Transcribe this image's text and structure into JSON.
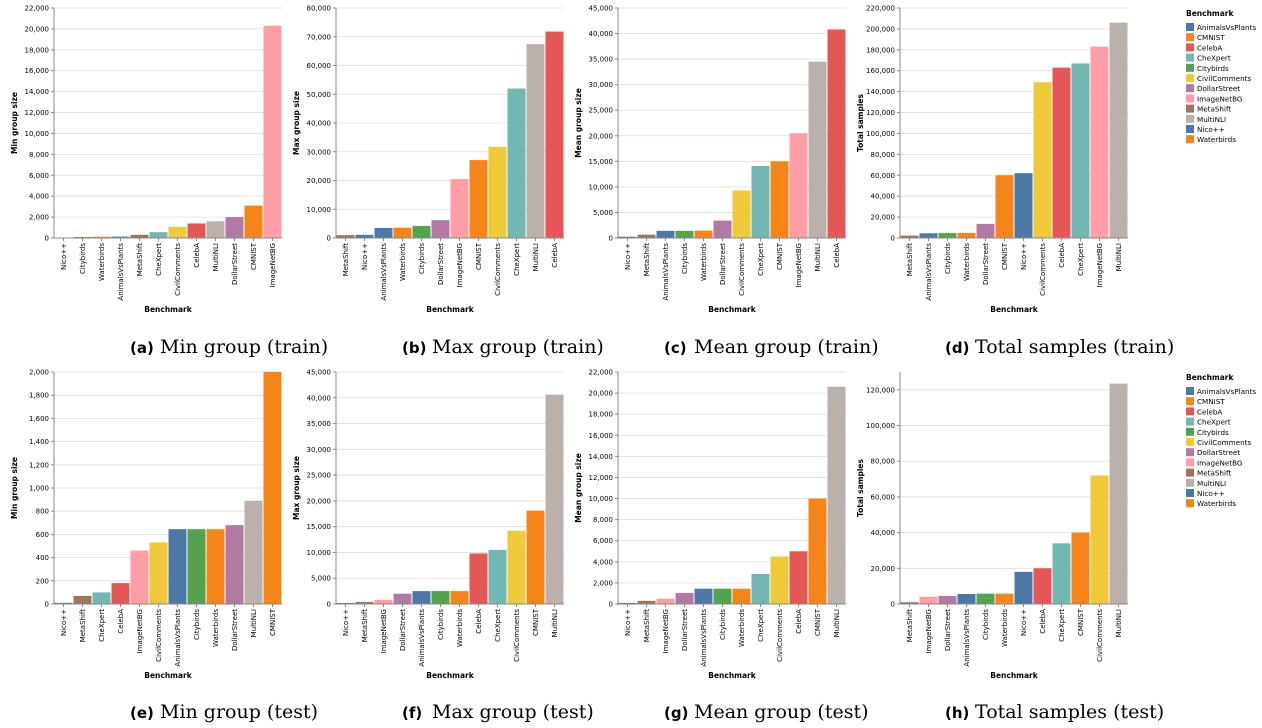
{
  "colors": {
    "AnimalsVsPlants": "#4c78a8",
    "CMNIST": "#f58518",
    "CelebA": "#e45756",
    "CheXpert": "#72b7b2",
    "Citybirds": "#54a24b",
    "CivilComments": "#eeca3b",
    "DollarStreet": "#b279a2",
    "ImageNetBG": "#ff9da6",
    "MetaShift": "#9d755d",
    "MultiNLI": "#bab0ac",
    "Nico++": "#4c78a8",
    "Waterbirds": "#f58518"
  },
  "chart_data": [
    {
      "type": "bar",
      "caption_letter": "(a)",
      "caption_text": "Min group (train)",
      "xlabel": "Benchmark",
      "ylabel": "Min group size",
      "ylim": [
        0,
        22000
      ],
      "yticks": [
        "0",
        "2,000",
        "4,000",
        "6,000",
        "8,000",
        "10,000",
        "12,000",
        "14,000",
        "16,000",
        "18,000",
        "20,000",
        "22,000"
      ],
      "categories": [
        "Nico++",
        "Citybirds",
        "Waterbirds",
        "AnimalsVsPlants",
        "MetaShift",
        "CheXpert",
        "CivilComments",
        "CelebA",
        "MultiNLI",
        "DollarStreet",
        "CMNIST",
        "ImageNetBG"
      ],
      "values": [
        30,
        100,
        120,
        130,
        300,
        560,
        1060,
        1390,
        1600,
        2000,
        3100,
        20300
      ]
    },
    {
      "type": "bar",
      "caption_letter": "(b)",
      "caption_text": "Max group (train)",
      "xlabel": "Benchmark",
      "ylabel": "Max group size",
      "ylim": [
        0,
        80000
      ],
      "yticks": [
        "0",
        "10,000",
        "20,000",
        "30,000",
        "40,000",
        "50,000",
        "60,000",
        "70,000",
        "80,000"
      ],
      "categories": [
        "MetaShift",
        "Nico++",
        "AnimalsVsPlants",
        "Waterbirds",
        "Citybirds",
        "DollarStreet",
        "ImageNetBG",
        "CMNIST",
        "CivilComments",
        "CheXpert",
        "MultiNLI",
        "CelebA"
      ],
      "values": [
        1000,
        1100,
        3500,
        3600,
        4200,
        6200,
        20500,
        27100,
        31700,
        52000,
        67400,
        71800
      ]
    },
    {
      "type": "bar",
      "caption_letter": "(c)",
      "caption_text": "Mean group (train)",
      "xlabel": "Benchmark",
      "ylabel": "Mean group size",
      "ylim": [
        0,
        45000
      ],
      "yticks": [
        "0",
        "5,000",
        "10,000",
        "15,000",
        "20,000",
        "25,000",
        "30,000",
        "35,000",
        "40,000",
        "45,000"
      ],
      "categories": [
        "Nico++",
        "MetaShift",
        "AnimalsVsPlants",
        "Citybirds",
        "Waterbirds",
        "DollarStreet",
        "CivilComments",
        "CheXpert",
        "CMNIST",
        "ImageNetBG",
        "MultiNLI",
        "CelebA"
      ],
      "values": [
        250,
        650,
        1400,
        1400,
        1450,
        3400,
        9300,
        14100,
        15000,
        20500,
        34500,
        40800
      ]
    },
    {
      "type": "bar",
      "caption_letter": "(d)",
      "caption_text": "Total samples (train)",
      "xlabel": "Benchmark",
      "ylabel": "Total samples",
      "ylim": [
        0,
        220000
      ],
      "yticks": [
        "0",
        "20,000",
        "40,000",
        "60,000",
        "80,000",
        "100,000",
        "120,000",
        "140,000",
        "160,000",
        "180,000",
        "200,000",
        "220,000"
      ],
      "categories": [
        "MetaShift",
        "AnimalsVsPlants",
        "Citybirds",
        "Waterbirds",
        "DollarStreet",
        "CMNIST",
        "Nico++",
        "CivilComments",
        "CelebA",
        "CheXpert",
        "ImageNetBG",
        "MultiNLI"
      ],
      "values": [
        2300,
        4500,
        4700,
        4800,
        13500,
        60000,
        62000,
        149000,
        163000,
        167000,
        183000,
        206000
      ],
      "legend": {
        "title": "Benchmark",
        "items": [
          "AnimalsVsPlants",
          "CMNIST",
          "CelebA",
          "CheXpert",
          "Citybirds",
          "CivilComments",
          "DollarStreet",
          "ImageNetBG",
          "MetaShift",
          "MultiNLI",
          "Nico++",
          "Waterbirds"
        ]
      }
    },
    {
      "type": "bar",
      "caption_letter": "(e)",
      "caption_text": "Min group (test)",
      "xlabel": "Benchmark",
      "ylabel": "Min group size",
      "ylim": [
        0,
        2000
      ],
      "yticks": [
        "0",
        "200",
        "400",
        "600",
        "800",
        "1,000",
        "1,200",
        "1,400",
        "1,600",
        "1,800",
        "2,000"
      ],
      "categories": [
        "Nico++",
        "MetaShift",
        "CheXpert",
        "CelebA",
        "ImageNetBG",
        "CivilComments",
        "AnimalsVsPlants",
        "Citybirds",
        "Waterbirds",
        "DollarStreet",
        "MultiNLI",
        "CMNIST"
      ],
      "values": [
        10,
        70,
        100,
        180,
        460,
        530,
        645,
        645,
        645,
        680,
        890,
        2000
      ]
    },
    {
      "type": "bar",
      "caption_letter": "(f)",
      "caption_text": "Max group (test)",
      "xlabel": "Benchmark",
      "ylabel": "Max group size",
      "ylim": [
        0,
        45000
      ],
      "yticks": [
        "0",
        "5,000",
        "10,000",
        "15,000",
        "20,000",
        "25,000",
        "30,000",
        "35,000",
        "40,000",
        "45,000"
      ],
      "categories": [
        "Nico++",
        "MetaShift",
        "ImageNetBG",
        "DollarStreet",
        "AnimalsVsPlants",
        "Citybirds",
        "Waterbirds",
        "CelebA",
        "CheXpert",
        "CivilComments",
        "CMNIST",
        "MultiNLI"
      ],
      "values": [
        200,
        400,
        800,
        2000,
        2500,
        2500,
        2500,
        9800,
        10500,
        14200,
        18100,
        40600
      ]
    },
    {
      "type": "bar",
      "caption_letter": "(g)",
      "caption_text": "Mean group (test)",
      "xlabel": "Benchmark",
      "ylabel": "Mean group size",
      "ylim": [
        0,
        22000
      ],
      "yticks": [
        "0",
        "2,000",
        "4,000",
        "6,000",
        "8,000",
        "10,000",
        "12,000",
        "14,000",
        "16,000",
        "18,000",
        "20,000",
        "22,000"
      ],
      "categories": [
        "Nico++",
        "MetaShift",
        "ImageNetBG",
        "DollarStreet",
        "AnimalsVsPlants",
        "Citybirds",
        "Waterbirds",
        "CheXpert",
        "CivilComments",
        "CelebA",
        "CMNIST",
        "MultiNLI"
      ],
      "values": [
        100,
        300,
        500,
        1050,
        1450,
        1450,
        1450,
        2850,
        4500,
        5000,
        10000,
        20600
      ]
    },
    {
      "type": "bar",
      "caption_letter": "(h)",
      "caption_text": "Total samples (test)",
      "xlabel": "Benchmark",
      "ylabel": "Total samples",
      "ylim": [
        0,
        130000
      ],
      "yticks": [
        "0",
        "20,000",
        "40,000",
        "60,000",
        "80,000",
        "100,000",
        "120,000"
      ],
      "ytick_values": [
        0,
        20000,
        40000,
        60000,
        80000,
        100000,
        120000
      ],
      "categories": [
        "MetaShift",
        "ImageNetBG",
        "DollarStreet",
        "AnimalsVsPlants",
        "Citybirds",
        "Waterbirds",
        "Nico++",
        "CelebA",
        "CheXpert",
        "CMNIST",
        "CivilComments",
        "MultiNLI"
      ],
      "values": [
        1000,
        4000,
        4500,
        5600,
        5800,
        5800,
        18000,
        20000,
        34000,
        40000,
        72000,
        123500
      ],
      "legend": {
        "title": "Benchmark",
        "items": [
          "AnimalsVsPlants",
          "CMNIST",
          "CelebA",
          "CheXpert",
          "Citybirds",
          "CivilComments",
          "DollarStreet",
          "ImageNetBG",
          "MetaShift",
          "MultiNLI",
          "Nico++",
          "Waterbirds"
        ]
      }
    }
  ]
}
